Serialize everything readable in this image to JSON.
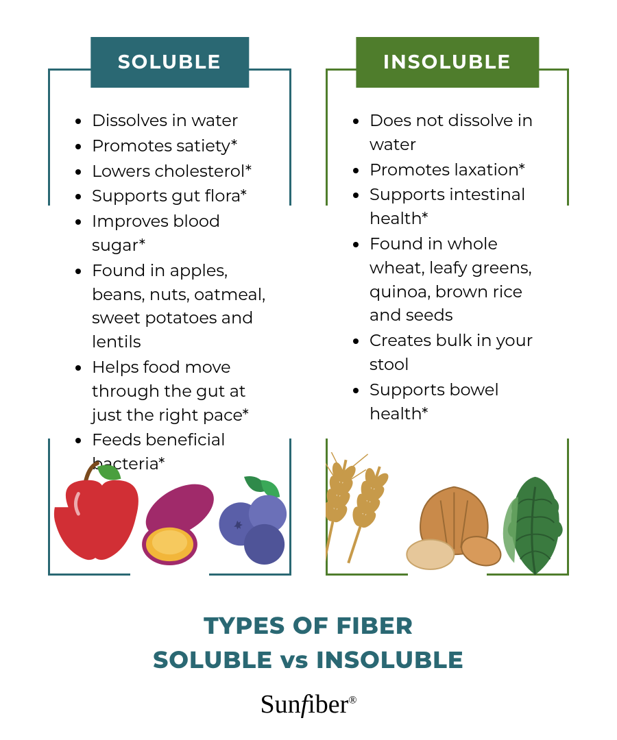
{
  "colors": {
    "background": "#ffffff",
    "text": "#000000",
    "soluble_header_bg": "#2a6873",
    "soluble_frame": "#2a6873",
    "insoluble_header_bg": "#4f7d2c",
    "insoluble_frame": "#4f7d2c",
    "footer_title": "#2a6873",
    "brand": "#000000"
  },
  "typography": {
    "header_fontsize": 28,
    "header_weight": 700,
    "list_fontsize": 24,
    "footer_fontsize": 34,
    "brand_fontsize": 38
  },
  "soluble": {
    "title": "SOLUBLE",
    "items": [
      "Dissolves in water",
      "Promotes satiety*",
      "Lowers cholesterol*",
      "Supports gut flora*",
      "Improves blood sugar*",
      "Found in apples, beans, nuts, oatmeal, sweet potatoes and lentils",
      "Helps food move through the gut at just the right pace*",
      "Feeds beneficial bacteria*"
    ],
    "illustrations": [
      "apple",
      "sweet-potato",
      "blueberries"
    ],
    "illustration_colors": {
      "apple_body": "#d12f35",
      "apple_leaf": "#4a9f3e",
      "apple_stem": "#7a4a1d",
      "sweet_potato_skin": "#a02a6a",
      "sweet_potato_flesh": "#f2b63a",
      "blueberry": "#5a5fa8",
      "blueberry_leaf": "#2f8a4a"
    }
  },
  "insoluble": {
    "title": "INSOLUBLE",
    "items": [
      "Does not dissolve in water",
      "Promotes laxation*",
      "Supports intestinal health*",
      "Found in whole wheat, leafy greens, quinoa, brown rice and seeds",
      "Creates bulk in your stool",
      "Supports bowel health*"
    ],
    "illustrations": [
      "wheat",
      "almonds",
      "kale"
    ],
    "illustration_colors": {
      "wheat": "#c79a4a",
      "almond_shell": "#c98a4a",
      "almond_light": "#e6c79a",
      "kale": "#3a7a3f",
      "kale_light": "#6aa663"
    }
  },
  "footer": {
    "line1": "TYPES OF FIBER",
    "line2": "SOLUBLE  vs  INSOLUBLE",
    "brand": "Sunfiber",
    "brand_mark": "®"
  }
}
